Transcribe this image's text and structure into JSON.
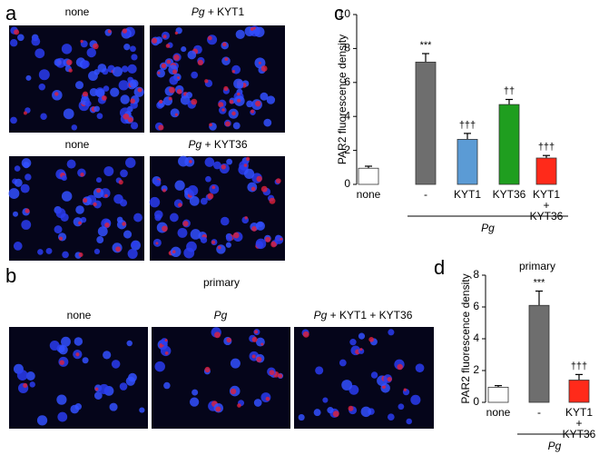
{
  "figure": {
    "panels": {
      "a": "a",
      "b": "b",
      "c": "c",
      "d": "d"
    },
    "a_images": [
      "none",
      {
        "italic": "Pg",
        "text": " + KYT1"
      },
      "none",
      {
        "italic": "Pg",
        "text": " + KYT36"
      }
    ],
    "b_title": "primary",
    "b_images": [
      "none",
      {
        "italic": "Pg",
        "text": ""
      },
      {
        "italic": "Pg",
        "text": " + KYT1 + KYT36"
      }
    ]
  },
  "chart_data": [
    {
      "type": "bar",
      "y_label": "PAR2 fluorescence density",
      "categories": [
        "none",
        "-",
        "KYT1",
        "KYT36",
        [
          "KYT1",
          "+",
          "KYT36"
        ]
      ],
      "values": [
        0.95,
        7.2,
        2.65,
        4.7,
        1.55
      ],
      "errors": [
        0.12,
        0.5,
        0.35,
        0.3,
        0.15
      ],
      "annotations": [
        null,
        "***",
        "†††",
        "††",
        "†††"
      ],
      "colors": [
        "#ffffff",
        "#6e6e6e",
        "#5b9bd5",
        "#1f9e1f",
        "#ff2a1a"
      ],
      "group_label": "Pg",
      "ylim": [
        0,
        10
      ],
      "yticks": [
        0,
        2,
        4,
        6,
        8,
        10
      ]
    },
    {
      "type": "bar",
      "title": "primary",
      "y_label": "PAR2 fluorescence density",
      "categories": [
        "none",
        "-",
        [
          "KYT1",
          "+",
          "KYT36"
        ]
      ],
      "values": [
        0.95,
        6.1,
        1.4
      ],
      "errors": [
        0.1,
        0.9,
        0.35
      ],
      "annotations": [
        null,
        "***",
        "†††"
      ],
      "colors": [
        "#ffffff",
        "#6e6e6e",
        "#ff2a1a"
      ],
      "group_label": "Pg",
      "ylim": [
        0,
        8
      ],
      "yticks": [
        0,
        2,
        4,
        6,
        8
      ]
    }
  ]
}
